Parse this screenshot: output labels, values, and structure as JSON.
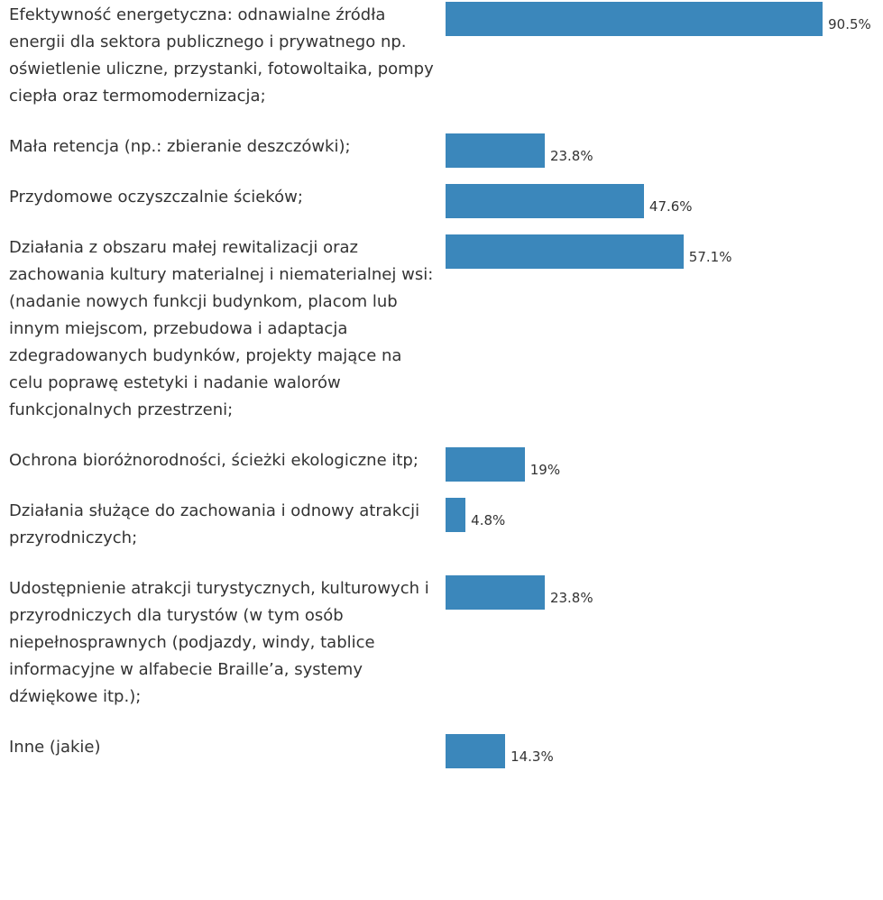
{
  "chart_data": {
    "type": "bar",
    "orientation": "horizontal",
    "categories": [
      "Efektywność energetyczna: odnawialne źródła energii dla sektora publicznego i prywatnego np. oświetlenie uliczne, przystanki, fotowoltaika, pompy ciepła oraz termomodernizacja;",
      "Mała retencja (np.: zbieranie deszczówki);",
      "Przydomowe oczyszczalnie ścieków;",
      "Działania z obszaru małej rewitalizacji oraz zachowania kultury materialnej i niematerialnej wsi: (nadanie nowych funkcji budynkom, placom lub innym miejscom,  przebudowa i adaptacja zdegradowanych budynków, projekty mające na celu poprawę estetyki i nadanie walorów funkcjonalnych przestrzeni;",
      "Ochrona bioróżnorodności, ścieżki ekologiczne itp;",
      "Działania służące do zachowania i odnowy atrakcji przyrodniczych;",
      "Udostępnienie atrakcji turystycznych, kulturowych i przyrodniczych dla turystów (w tym osób niepełnosprawnych (podjazdy, windy, tablice informacyjne w alfabecie Braille’a, systemy dźwiękowe itp.);",
      "Inne (jakie)"
    ],
    "values": [
      90.5,
      23.8,
      47.6,
      57.1,
      19,
      4.8,
      23.8,
      14.3
    ],
    "value_labels": [
      "90.5%",
      "23.8%",
      "47.6%",
      "57.1%",
      "19%",
      "4.8%",
      "23.8%",
      "14.3%"
    ],
    "color": "#3b87bb",
    "xlim": [
      0,
      100
    ]
  }
}
